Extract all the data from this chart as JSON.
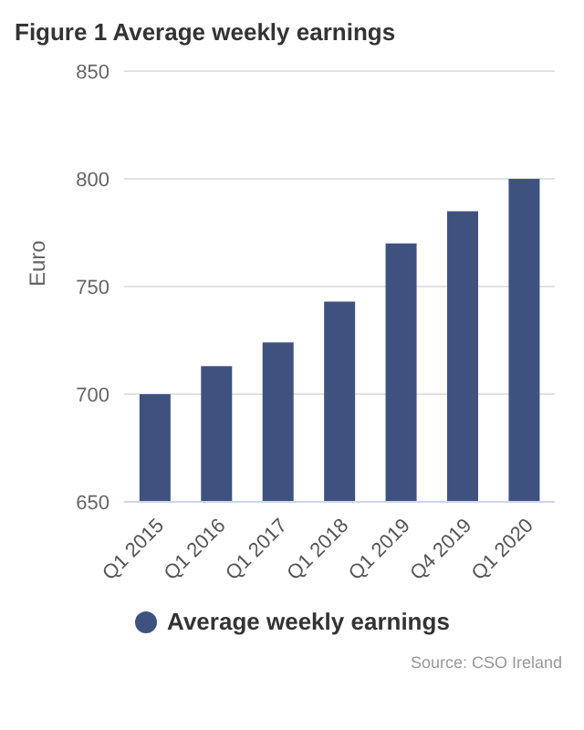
{
  "chart_data": {
    "type": "bar",
    "title": "Figure 1 Average weekly earnings",
    "ylabel": "Euro",
    "categories": [
      "Q1 2015",
      "Q1 2016",
      "Q1 2017",
      "Q1 2018",
      "Q1 2019",
      "Q4 2019",
      "Q1 2020"
    ],
    "series": [
      {
        "name": "Average weekly earnings",
        "color": "#3f527f",
        "values": [
          700,
          713,
          724,
          743,
          770,
          785,
          800
        ]
      }
    ],
    "ylim": [
      650,
      850
    ],
    "yticks": [
      650,
      700,
      750,
      800,
      850
    ],
    "grid": "y",
    "legend": "bottom",
    "annotations": [
      "Source: CSO Ireland"
    ]
  }
}
